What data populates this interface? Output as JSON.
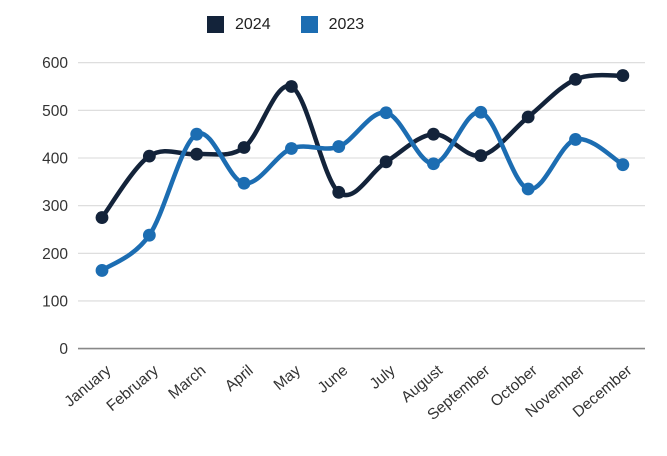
{
  "chart_data": {
    "type": "line",
    "title": "",
    "xlabel": "",
    "ylabel": "",
    "categories": [
      "January",
      "February",
      "March",
      "April",
      "May",
      "June",
      "July",
      "August",
      "September",
      "October",
      "November",
      "December"
    ],
    "series": [
      {
        "name": "2024",
        "color": "#13233A",
        "values": [
          275,
          404,
          408,
          422,
          550,
          328,
          392,
          450,
          405,
          486,
          565,
          573
        ]
      },
      {
        "name": "2023",
        "color": "#1C6DB2",
        "values": [
          164,
          238,
          450,
          347,
          420,
          424,
          495,
          388,
          496,
          335,
          439,
          386
        ]
      }
    ],
    "ylim": [
      0,
      600
    ],
    "yticks": [
      0,
      100,
      200,
      300,
      400,
      500,
      600
    ],
    "grid": true,
    "grid_color": "#D9D9D9",
    "axis_line_color": "#888888",
    "tick_label_color": "#333333",
    "legend_position": "top-center",
    "line_style": "smooth",
    "markers": true
  }
}
